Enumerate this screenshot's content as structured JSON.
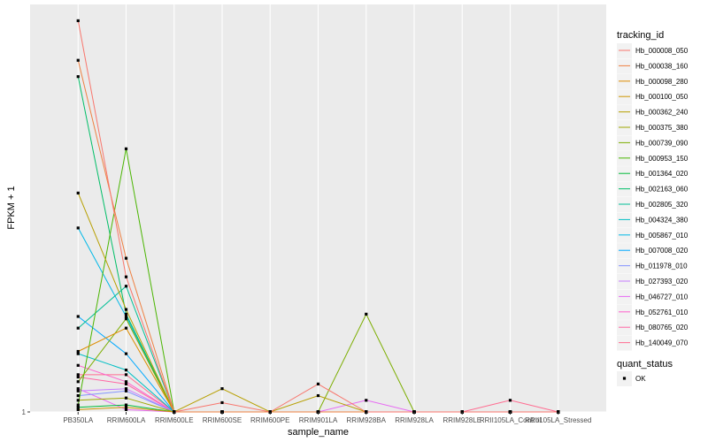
{
  "chart_data": {
    "type": "line",
    "xlabel": "sample_name",
    "ylabel": "FPKM + 1",
    "ylim": [
      1,
      18.5
    ],
    "y_ticks": [
      {
        "value": 1,
        "label": "1"
      }
    ],
    "categories": [
      "PB350LA",
      "RRIM600LA",
      "RRIM600LE",
      "RRIM600SE",
      "RRIM600PE",
      "RRIM901LA",
      "RRIM928BA",
      "RRIM928LA",
      "RRIM928LE",
      "RRII105LA_Control",
      "RRII105LA_Stressed"
    ],
    "grid": true,
    "legend": {
      "title": "tracking_id",
      "position": "right"
    },
    "shape_legend": {
      "title": "quant_status",
      "entries": [
        "OK"
      ]
    },
    "series": [
      {
        "name": "Hb_000008_050",
        "color": "#F8766D",
        "values": [
          17.8,
          6.8,
          1,
          1.4,
          1,
          2.2,
          1,
          1,
          1,
          1,
          1
        ]
      },
      {
        "name": "Hb_000038_160",
        "color": "#EE8042",
        "values": [
          16.1,
          7.6,
          1,
          1,
          1,
          1,
          1,
          1,
          1,
          1,
          1
        ]
      },
      {
        "name": "Hb_000098_280",
        "color": "#DE8C00",
        "values": [
          3.6,
          4.6,
          1,
          1,
          1,
          1,
          1,
          1,
          1,
          1,
          1
        ]
      },
      {
        "name": "Hb_000100_050",
        "color": "#CD9600",
        "values": [
          1.1,
          1.2,
          1,
          1,
          1,
          1,
          1,
          1,
          1,
          1,
          1
        ]
      },
      {
        "name": "Hb_000362_240",
        "color": "#B79F00",
        "values": [
          10.4,
          5.4,
          1,
          2.0,
          1,
          1.7,
          1,
          1,
          1,
          1,
          1
        ]
      },
      {
        "name": "Hb_000375_380",
        "color": "#9DA700",
        "values": [
          1.5,
          1.6,
          1,
          1,
          1,
          1,
          1,
          1,
          1,
          1,
          1
        ]
      },
      {
        "name": "Hb_000739_090",
        "color": "#7CAE00",
        "values": [
          2.3,
          5.0,
          1,
          1,
          1,
          1,
          5.2,
          1,
          1,
          1,
          1
        ]
      },
      {
        "name": "Hb_000953_150",
        "color": "#49B500",
        "values": [
          1.3,
          12.3,
          1,
          1,
          1,
          1,
          1,
          1,
          1,
          1,
          1
        ]
      },
      {
        "name": "Hb_001364_020",
        "color": "#00BA38",
        "values": [
          1.2,
          1.3,
          1,
          1,
          1,
          1,
          1,
          1,
          1,
          1,
          1
        ]
      },
      {
        "name": "Hb_002163_060",
        "color": "#00BE67",
        "values": [
          15.4,
          5.2,
          1,
          1,
          1,
          1,
          1,
          1,
          1,
          1,
          1
        ]
      },
      {
        "name": "Hb_002805_320",
        "color": "#00BF96",
        "values": [
          4.6,
          6.4,
          1,
          1,
          1,
          1,
          1,
          1,
          1,
          1,
          1
        ]
      },
      {
        "name": "Hb_004324_380",
        "color": "#00BFC4",
        "values": [
          3.5,
          2.8,
          1,
          1,
          1,
          1,
          1,
          1,
          1,
          1,
          1
        ]
      },
      {
        "name": "Hb_005867_010",
        "color": "#00B8E7",
        "values": [
          8.9,
          5.1,
          1,
          1,
          1,
          1,
          1,
          1,
          1,
          1,
          1
        ]
      },
      {
        "name": "Hb_007008_020",
        "color": "#00A9FF",
        "values": [
          5.1,
          3.5,
          1,
          1,
          1,
          1,
          1,
          1,
          1,
          1,
          1
        ]
      },
      {
        "name": "Hb_011978_010",
        "color": "#8494FF",
        "values": [
          1.7,
          1.9,
          1,
          1,
          1,
          1,
          1,
          1,
          1,
          1,
          1
        ]
      },
      {
        "name": "Hb_027393_020",
        "color": "#C77CFF",
        "values": [
          1.9,
          2.0,
          1,
          1,
          1,
          1,
          1,
          1,
          1,
          1,
          1
        ]
      },
      {
        "name": "Hb_046727_010",
        "color": "#E76BF3",
        "values": [
          2.0,
          1.1,
          1,
          1,
          1,
          1,
          1.5,
          1,
          1,
          1,
          1
        ]
      },
      {
        "name": "Hb_052761_010",
        "color": "#FF61CC",
        "values": [
          3.0,
          2.3,
          1,
          1,
          1,
          1,
          1,
          1,
          1,
          1,
          1
        ]
      },
      {
        "name": "Hb_080765_020",
        "color": "#FF67A4",
        "values": [
          2.5,
          2.2,
          1,
          1,
          1,
          1,
          1,
          1,
          1,
          1,
          1
        ]
      },
      {
        "name": "Hb_140049_070",
        "color": "#FF6C91",
        "values": [
          2.6,
          2.6,
          1,
          1,
          1,
          1,
          1,
          1,
          1,
          1.5,
          1
        ]
      }
    ]
  }
}
